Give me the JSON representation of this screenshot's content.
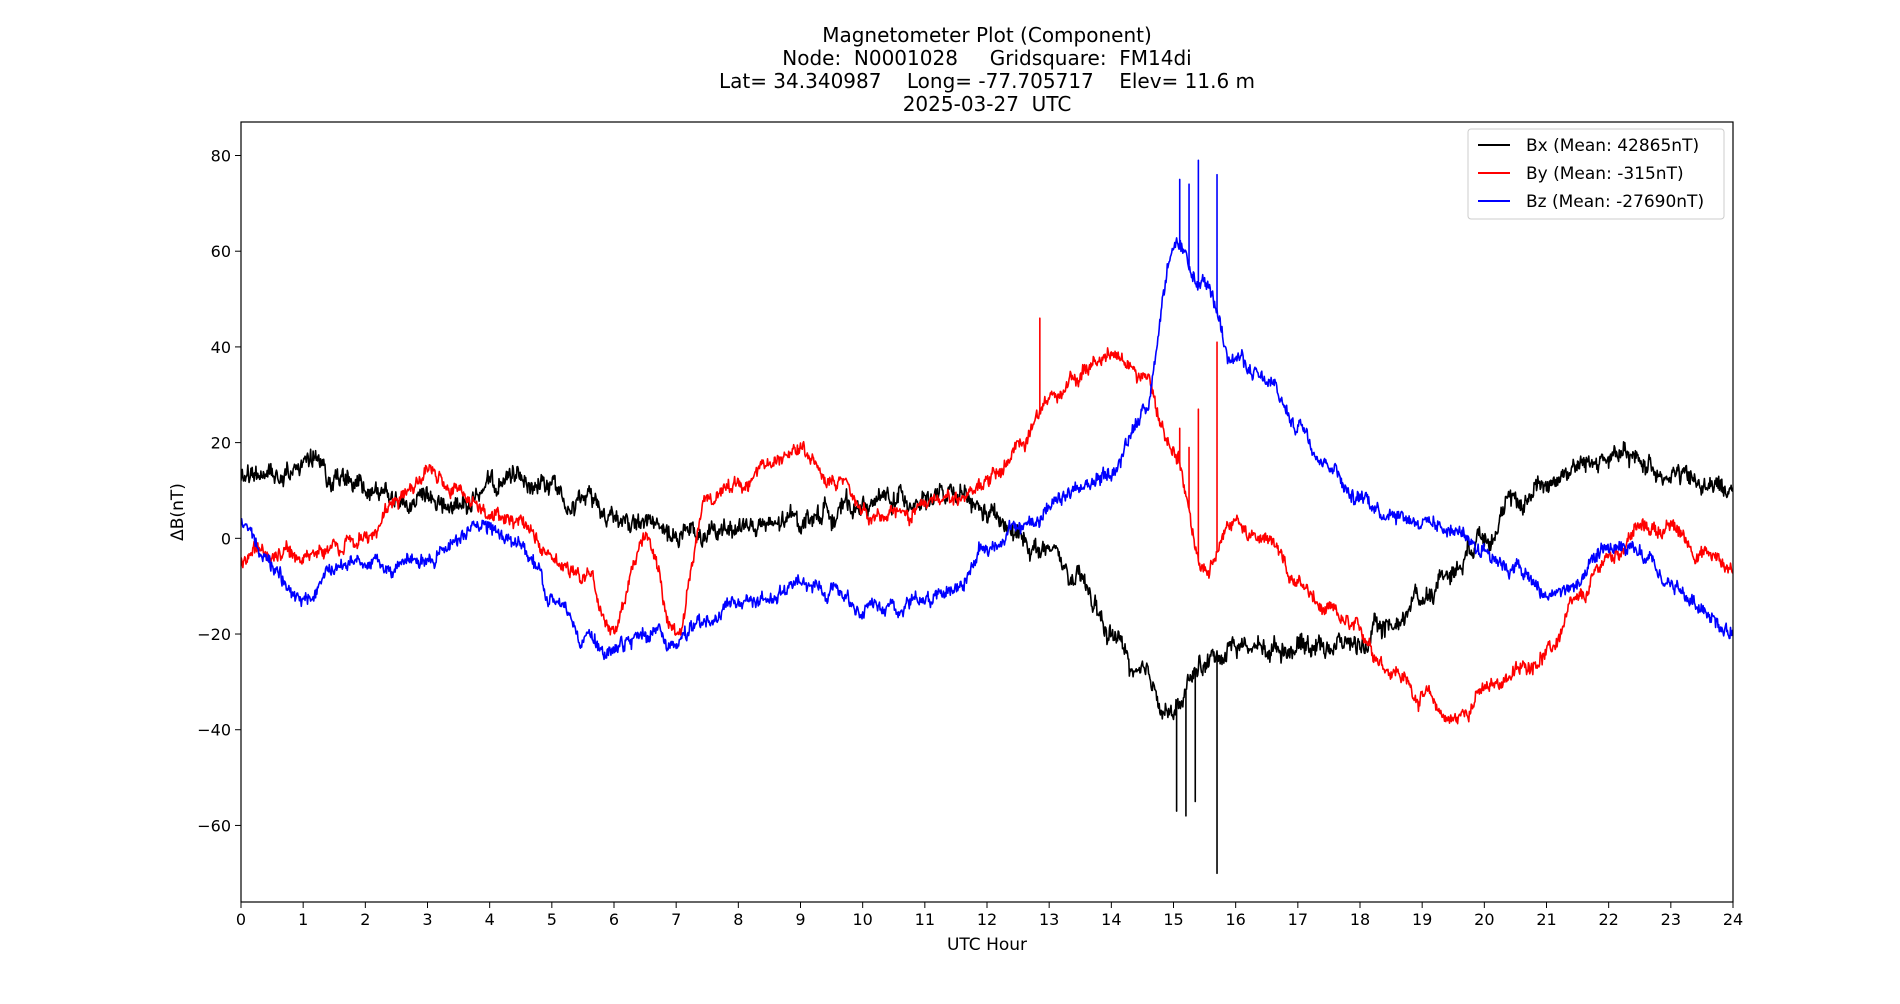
{
  "chart_data": {
    "type": "line",
    "title_lines": [
      "Magnetometer Plot (Component)",
      "Node:  N0001028     Gridsquare:  FM14di",
      "Lat= 34.340987    Long= -77.705717    Elev= 11.6 m",
      "2025-03-27  UTC"
    ],
    "xlabel": "UTC Hour",
    "ylabel": "ΔB(nT)",
    "xlim": [
      0,
      24
    ],
    "ylim": [
      -76,
      87
    ],
    "xticks": [
      0,
      1,
      2,
      3,
      4,
      5,
      6,
      7,
      8,
      9,
      10,
      11,
      12,
      13,
      14,
      15,
      16,
      17,
      18,
      19,
      20,
      21,
      22,
      23,
      24
    ],
    "yticks": [
      -60,
      -40,
      -20,
      0,
      20,
      40,
      60,
      80
    ],
    "grid": false,
    "legend_position": "top-right",
    "series": [
      {
        "name": "Bx (Mean: 42865nT)",
        "color": "#000000",
        "noise": 2.2,
        "x": [
          0,
          0.5,
          1,
          1.5,
          2,
          2.5,
          3,
          3.5,
          4,
          4.5,
          5,
          5.5,
          6,
          6.5,
          7,
          7.5,
          8,
          8.5,
          9,
          9.5,
          10,
          10.5,
          11,
          11.5,
          12,
          12.5,
          13,
          13.5,
          14,
          14.5,
          15,
          15.5,
          16,
          16.5,
          17,
          17.5,
          18,
          18.5,
          19,
          19.5,
          20,
          20.5,
          21,
          21.5,
          22,
          22.5,
          23,
          23.5,
          24
        ],
        "y": [
          12,
          14,
          16,
          13,
          10,
          8,
          6,
          7,
          10,
          13,
          11,
          8,
          5,
          3,
          0,
          0,
          3,
          2,
          4,
          6,
          7,
          8,
          9,
          8,
          5,
          0,
          -3,
          -10,
          -20,
          -30,
          -36,
          -26,
          -22,
          -23,
          -22,
          -22,
          -22,
          -18,
          -12,
          -6,
          2,
          7,
          12,
          15,
          17,
          16,
          14,
          11,
          10
        ],
        "spikes": [
          {
            "x": 15.05,
            "y": -57
          },
          {
            "x": 15.2,
            "y": -58
          },
          {
            "x": 15.35,
            "y": -55
          },
          {
            "x": 15.7,
            "y": -70
          }
        ]
      },
      {
        "name": "By (Mean: -315nT)",
        "color": "#ff0000",
        "noise": 1.6,
        "x": [
          0,
          0.5,
          1,
          1.5,
          2,
          2.5,
          3,
          3.5,
          4,
          4.5,
          5,
          5.5,
          6,
          6.5,
          7,
          7.5,
          8,
          8.5,
          9,
          9.5,
          10,
          10.5,
          11,
          11.5,
          12,
          12.5,
          13,
          13.5,
          14,
          14.5,
          15,
          15.5,
          16,
          16.5,
          17,
          17.5,
          18,
          18.5,
          19,
          19.5,
          20,
          20.5,
          21,
          21.5,
          22,
          22.5,
          23,
          23.5,
          24
        ],
        "y": [
          -4,
          -3,
          -4,
          -2,
          0,
          8,
          13,
          10,
          6,
          2,
          -4,
          -7,
          -18,
          0,
          -20,
          9,
          12,
          15,
          18,
          14,
          6,
          4,
          6,
          9,
          12,
          18,
          30,
          34,
          38,
          34,
          18,
          -7,
          4,
          0,
          -10,
          -16,
          -20,
          -27,
          -33,
          -38,
          -32,
          -28,
          -24,
          -14,
          -4,
          2,
          2,
          -3,
          -6
        ],
        "spikes": [
          {
            "x": 12.85,
            "y": 46
          },
          {
            "x": 15.1,
            "y": 23
          },
          {
            "x": 15.25,
            "y": 19
          },
          {
            "x": 15.4,
            "y": 27
          },
          {
            "x": 15.7,
            "y": 41
          }
        ]
      },
      {
        "name": "Bz (Mean: -27690nT)",
        "color": "#0000ff",
        "noise": 1.6,
        "x": [
          0,
          0.5,
          1,
          1.5,
          2,
          2.5,
          3,
          3.5,
          4,
          4.5,
          5,
          5.5,
          6,
          6.5,
          7,
          7.5,
          8,
          8.5,
          9,
          9.5,
          10,
          10.5,
          11,
          11.5,
          12,
          12.5,
          13,
          13.5,
          14,
          14.5,
          15,
          15.5,
          16,
          16.5,
          17,
          17.5,
          18,
          18.5,
          19,
          19.5,
          20,
          20.5,
          21,
          21.5,
          22,
          22.5,
          23,
          23.5,
          24
        ],
        "y": [
          4,
          -6,
          -14,
          -6,
          -5,
          -6,
          -4,
          0,
          3,
          -2,
          -12,
          -20,
          -24,
          -20,
          -22,
          -18,
          -14,
          -12,
          -10,
          -10,
          -14,
          -14,
          -12,
          -10,
          -2,
          2,
          6,
          10,
          14,
          26,
          60,
          52,
          38,
          32,
          24,
          16,
          8,
          6,
          4,
          2,
          -2,
          -6,
          -12,
          -10,
          -2,
          -4,
          -10,
          -14,
          -20
        ],
        "spikes": [
          {
            "x": 15.1,
            "y": 75
          },
          {
            "x": 15.25,
            "y": 74
          },
          {
            "x": 15.4,
            "y": 79
          },
          {
            "x": 15.7,
            "y": 76
          }
        ]
      }
    ]
  }
}
